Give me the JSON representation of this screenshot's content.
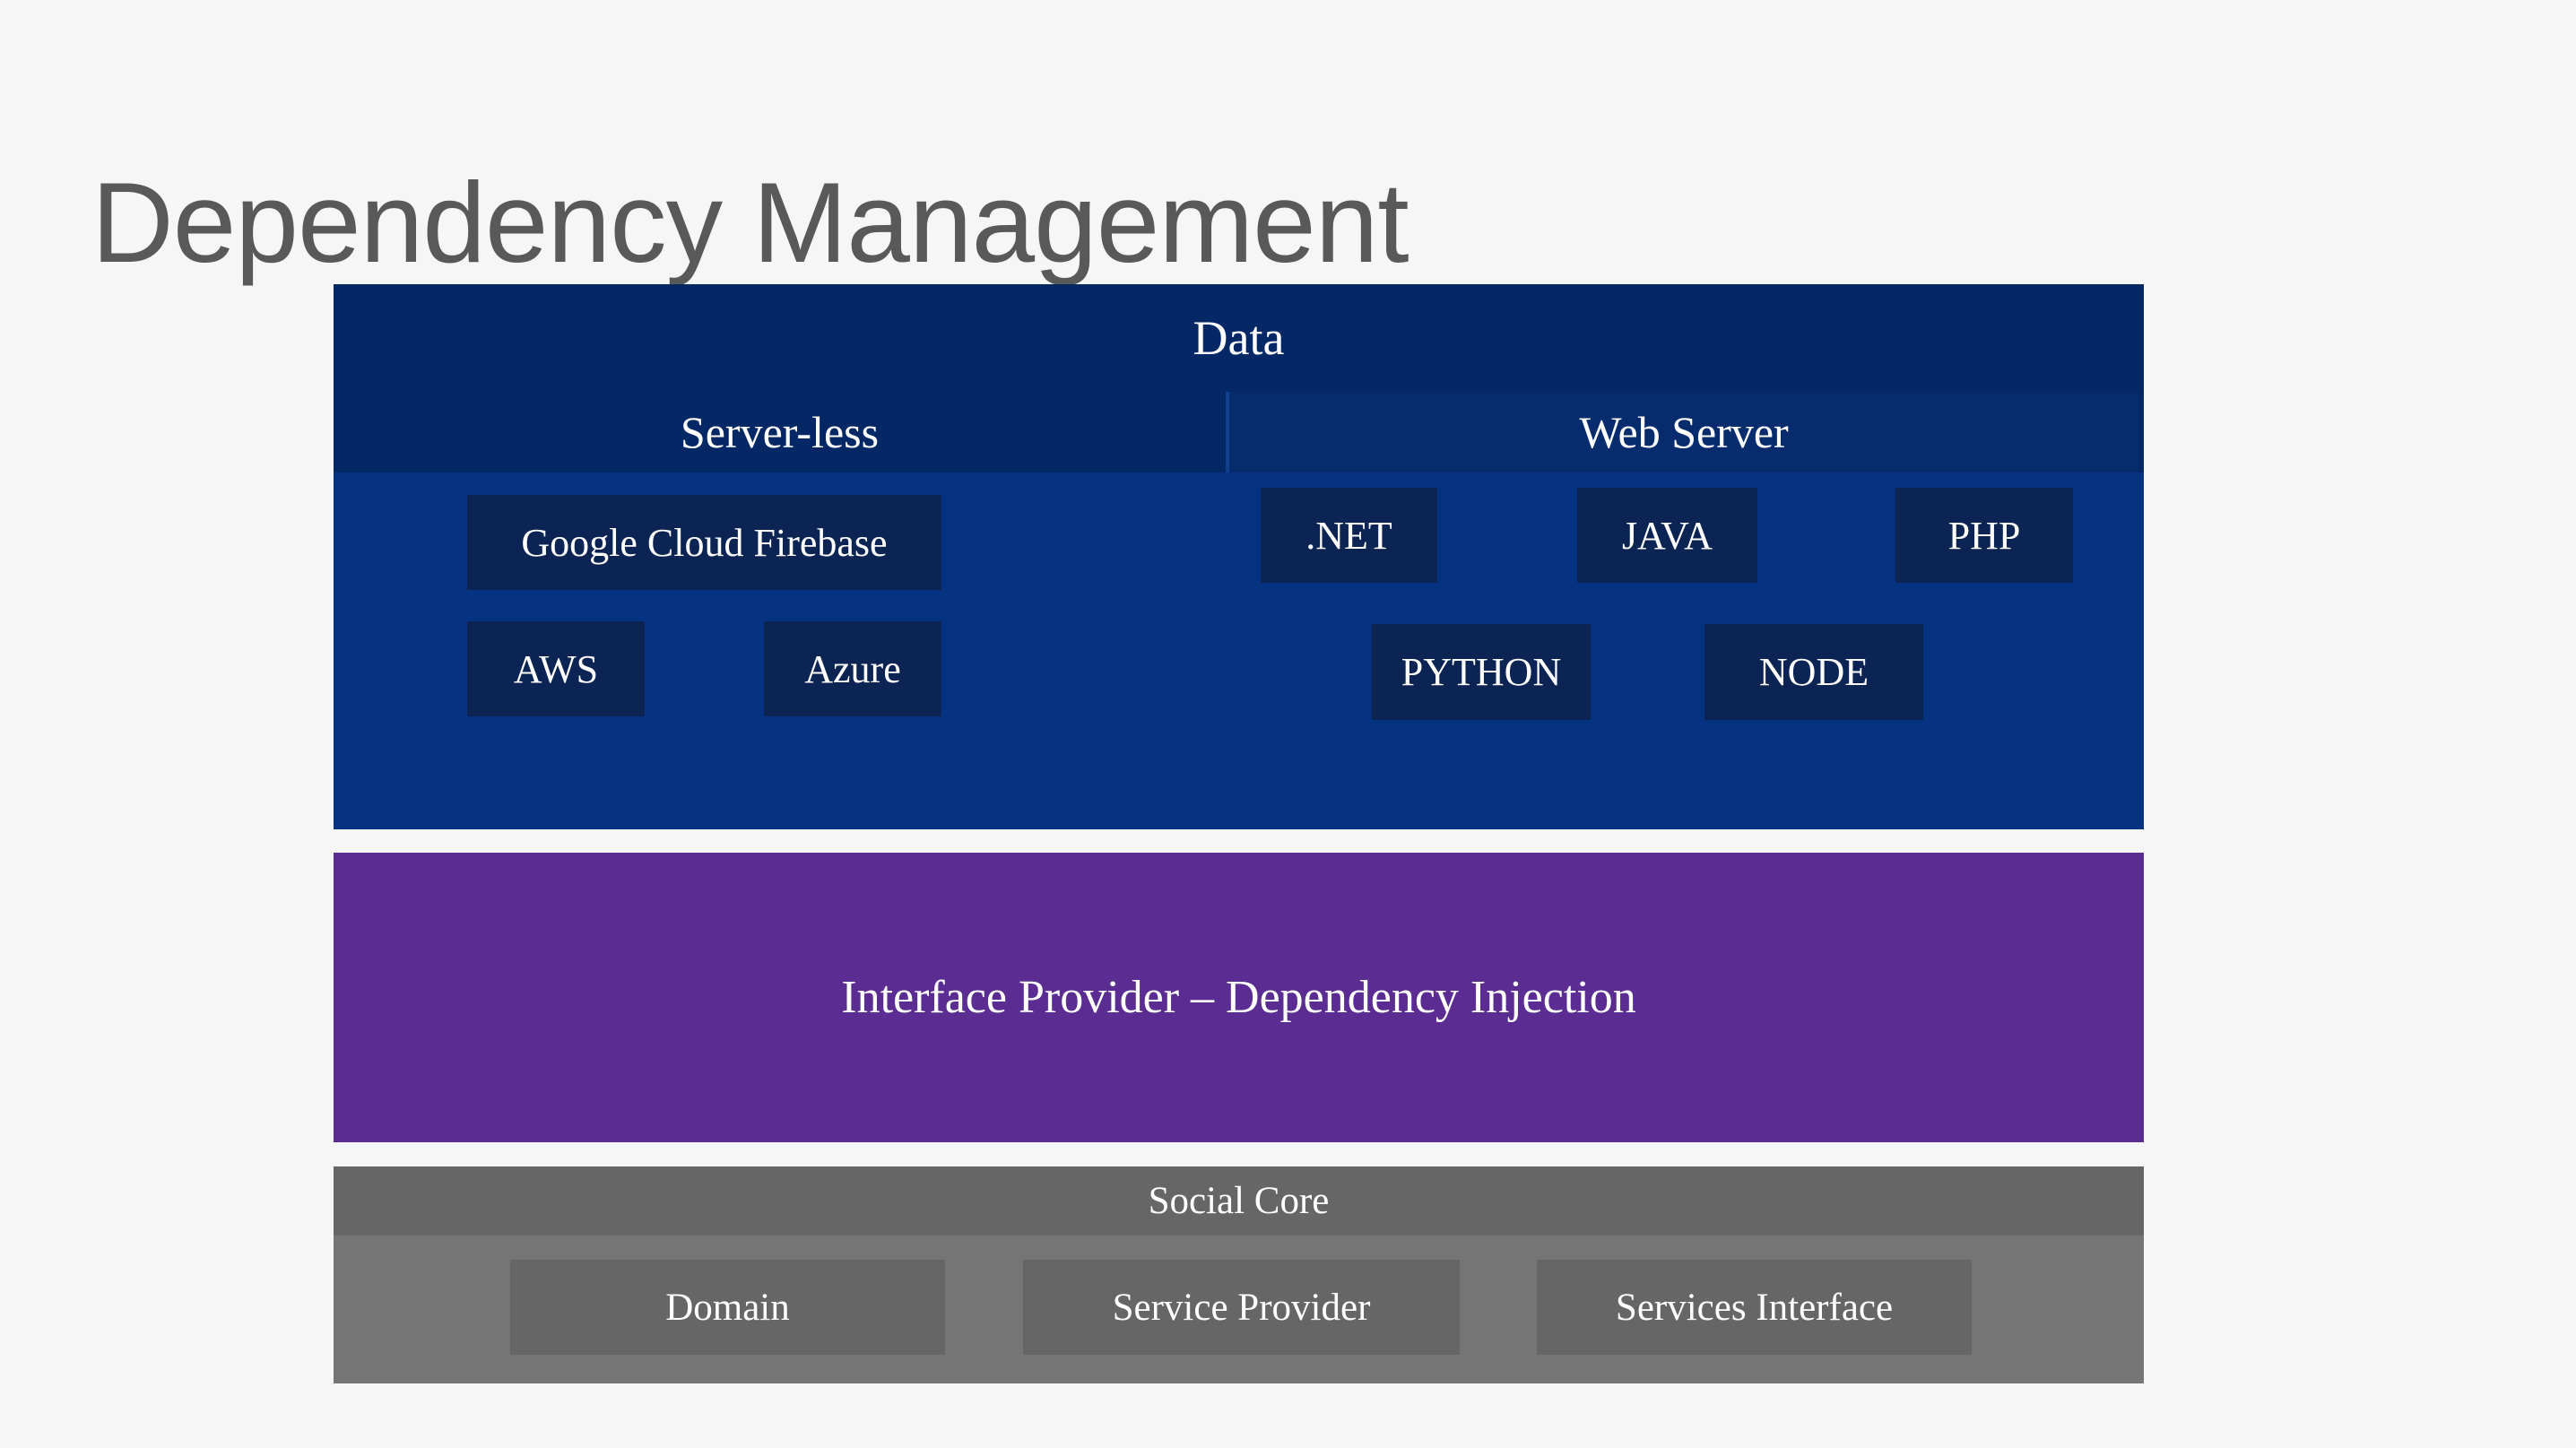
{
  "page": {
    "title": "Dependency Management"
  },
  "colors": {
    "background": "#f6f6f7",
    "title_text": "#595959",
    "data_header_navy": "#042866",
    "webserver_box_navy": "#072c6e",
    "data_body_blue": "#053381",
    "chip_navy": "#0c2453",
    "interface_purple": "#5b2d93",
    "social_header_gray": "#666666",
    "social_body_gray": "#757575",
    "social_chip_gray": "#666666",
    "block_text": "#ffffff"
  },
  "diagram": {
    "data_block": {
      "title": "Data",
      "serverless": {
        "label": "Server-less",
        "chips": [
          "Google Cloud Firebase",
          "AWS",
          "Azure"
        ]
      },
      "webserver": {
        "label": "Web Server",
        "chips": [
          ".NET",
          "JAVA",
          "PHP",
          "PYTHON",
          "NODE"
        ]
      }
    },
    "interface_block": {
      "label": "Interface Provider – Dependency Injection"
    },
    "social_block": {
      "label": "Social Core",
      "chips": [
        "Domain",
        "Service Provider",
        "Services Interface"
      ]
    }
  }
}
